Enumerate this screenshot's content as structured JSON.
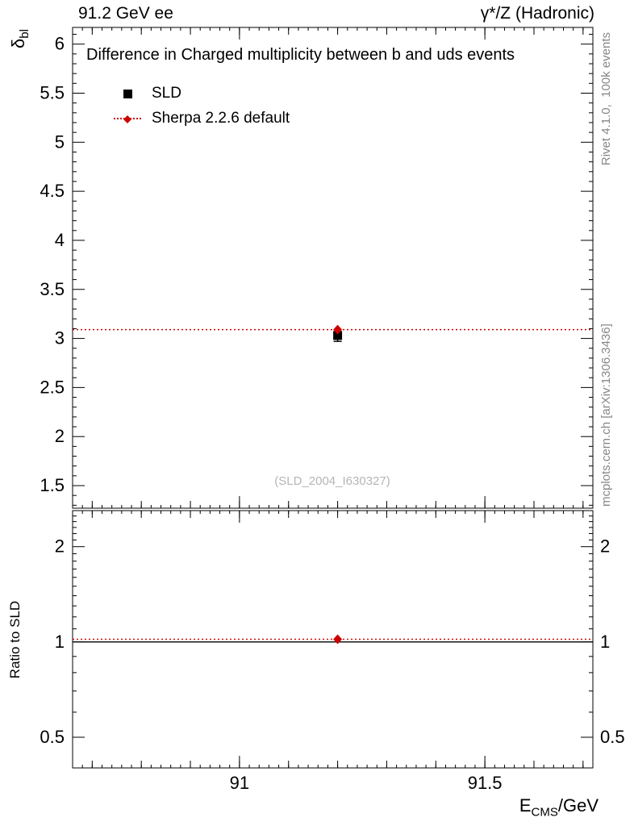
{
  "header": {
    "left": "91.2 GeV ee",
    "right": "γ*/Z (Hadronic)"
  },
  "side": {
    "top": "Rivet 4.1.0,  100k events",
    "bottom": "mcplots.cern.ch [arXiv:1306.3436]"
  },
  "main_panel": {
    "title": "Difference in Charged multiplicity between b and uds events",
    "ylabel_main": "δ",
    "ylabel_sub": "bl",
    "watermark": "(SLD_2004_I630327)"
  },
  "ratio_panel": {
    "ylabel": "Ratio to SLD"
  },
  "axes": {
    "xlabel_main": "E",
    "xlabel_sub": "CMS",
    "xlabel_suffix": "/GeV"
  },
  "legend": {
    "items": [
      {
        "label": "SLD",
        "marker": "square",
        "color": "#000000"
      },
      {
        "label": "Sherpa 2.2.6 default",
        "marker": "diamond-dotted-line",
        "color": "#cc0000"
      }
    ]
  },
  "chart_data": [
    {
      "type": "scatter",
      "title": "Difference in Charged multiplicity between b and uds events",
      "xlabel": "E_CMS/GeV",
      "ylabel": "delta_bl",
      "xlim": [
        90.66,
        91.72
      ],
      "ylim": [
        1.27,
        6.17
      ],
      "yscale": "linear",
      "xticks": [
        91,
        91.5
      ],
      "yticks": [
        1.5,
        2,
        2.5,
        3,
        3.5,
        4,
        4.5,
        5,
        5.5,
        6
      ],
      "ytick_labels": "left",
      "xtick_labels": false,
      "grid": false,
      "legend_position": "top-left",
      "series": [
        {
          "name": "SLD",
          "marker": "square",
          "color": "#000000",
          "points": [
            {
              "x": 91.2,
              "y": 3.03,
              "yerr": 0.06
            }
          ]
        },
        {
          "name": "Sherpa 2.2.6 default",
          "marker": "diamond",
          "color": "#cc0000",
          "line_style": "dotted",
          "line_y": 3.09,
          "points": [
            {
              "x": 91.2,
              "y": 3.09
            }
          ]
        }
      ]
    },
    {
      "type": "ratio",
      "ylabel": "Ratio to SLD",
      "xlim": [
        90.66,
        91.72
      ],
      "ylim": [
        0.4,
        2.6
      ],
      "yscale": "log",
      "xticks": [
        91,
        91.5
      ],
      "yticks": [
        0.5,
        1,
        2
      ],
      "ytick_labels": "both",
      "xtick_labels": true,
      "grid": false,
      "series": [
        {
          "name": "reference",
          "color": "#000000",
          "line_style": "solid",
          "line_y": 1.0
        },
        {
          "name": "Sherpa 2.2.6 default",
          "marker": "diamond",
          "color": "#cc0000",
          "line_style": "dotted",
          "line_y": 1.02,
          "points": [
            {
              "x": 91.2,
              "y": 1.02
            }
          ]
        }
      ]
    }
  ]
}
